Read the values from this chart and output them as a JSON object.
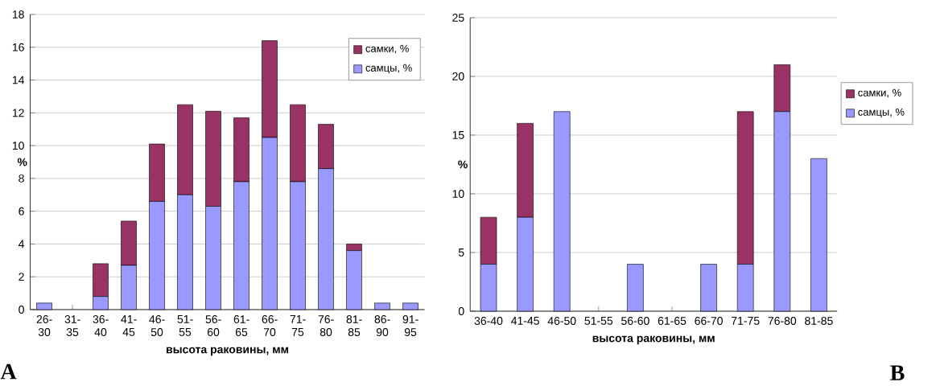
{
  "chart_data": [
    {
      "type": "bar",
      "stacked": true,
      "xlabel": "высота раковины, мм",
      "ylabel": "%",
      "categories": [
        "26-30",
        "31-35",
        "36-40",
        "41-45",
        "46-50",
        "51-55",
        "56-60",
        "61-65",
        "66-70",
        "71-75",
        "76-80",
        "81-85",
        "86-90",
        "91-95"
      ],
      "series": [
        {
          "name": "самцы, %",
          "color": "#9999ff",
          "values": [
            0.4,
            0,
            0.8,
            2.7,
            6.6,
            7.0,
            6.3,
            7.8,
            10.5,
            7.8,
            8.6,
            3.6,
            0.4,
            0.4
          ]
        },
        {
          "name": "самки, %",
          "color": "#993366",
          "values": [
            0,
            0,
            2.0,
            2.7,
            3.5,
            5.5,
            5.8,
            3.9,
            5.9,
            4.7,
            2.7,
            0.4,
            0,
            0
          ]
        }
      ],
      "ylim": [
        0,
        18
      ],
      "yticks": [
        0,
        2,
        4,
        6,
        8,
        10,
        12,
        14,
        16,
        18
      ],
      "grid": "y",
      "legend": "top right",
      "annotations": [
        "A"
      ]
    },
    {
      "type": "bar",
      "stacked": true,
      "xlabel": "высота раковины, мм",
      "ylabel": "%",
      "categories": [
        "36-40",
        "41-45",
        "46-50",
        "51-55",
        "56-60",
        "61-65",
        "66-70",
        "71-75",
        "76-80",
        "81-85"
      ],
      "series": [
        {
          "name": "самцы, %",
          "color": "#9999ff",
          "values": [
            4,
            8,
            17,
            0,
            4,
            0,
            4,
            4,
            17,
            13
          ]
        },
        {
          "name": "самки, %",
          "color": "#993366",
          "values": [
            4,
            8,
            0,
            0,
            0,
            0,
            0,
            13,
            4,
            0
          ]
        }
      ],
      "ylim": [
        0,
        25
      ],
      "yticks": [
        0,
        5,
        10,
        15,
        20,
        25
      ],
      "grid": "y",
      "legend": "right",
      "annotations": [
        "B"
      ]
    }
  ]
}
